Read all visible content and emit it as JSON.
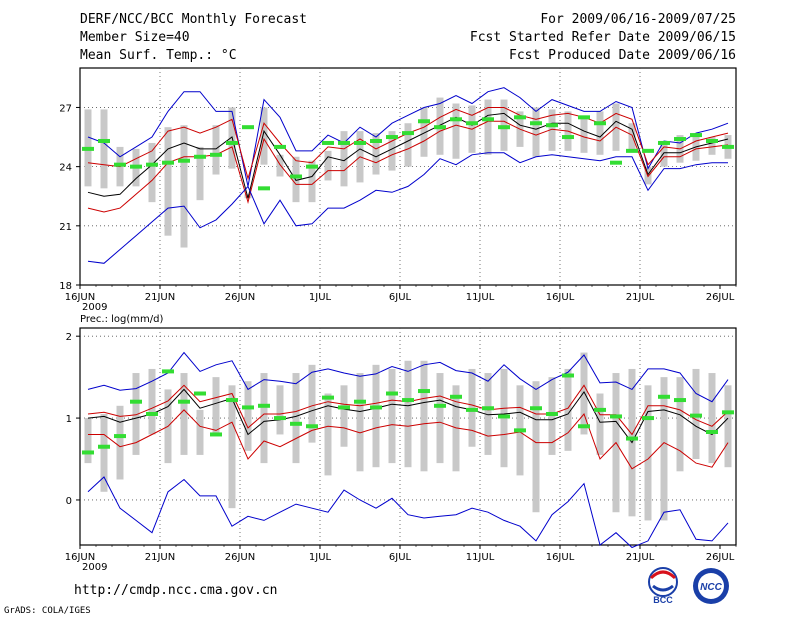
{
  "header": {
    "title": "DERF/NCC/BCC Monthly Forecast",
    "member_size": "Member Size=40",
    "top_var": "Mean Surf. Temp.: °C",
    "period": "For 2009/06/16-2009/07/25",
    "start_ref": "Fcst Started Refer Date 2009/06/15",
    "produced": "Fcst Produced Date 2009/06/16"
  },
  "footer": {
    "url": "http://cmdp.ncc.cma.gov.cn",
    "grads": "GrADS: COLA/IGES",
    "logo_bcc": "BCC",
    "logo_ncc": "NCC"
  },
  "colors": {
    "box": "#c8c8c8",
    "mean": "#000000",
    "band": "#cc0000",
    "extreme": "#0000cc",
    "obs": "#33dd33",
    "grid": "#555555"
  },
  "chart_data": [
    {
      "type": "box",
      "title": "Mean Surf. Temp.: °C",
      "xlabel": "",
      "ylabel": "",
      "x_tick_labels": [
        "16JUN",
        "21JUN",
        "26JUN",
        "1JUL",
        "6JUL",
        "11JUL",
        "16JUL",
        "21JUL",
        "26JUL"
      ],
      "x_year_label": "2009",
      "y_ticks": [
        18,
        21,
        24,
        27
      ],
      "ylim": [
        18,
        29
      ],
      "days": 41,
      "series": [
        {
          "name": "max",
          "values": [
            25.5,
            25.2,
            24.5,
            25.0,
            25.5,
            26.8,
            27.8,
            27.8,
            26.8,
            26.8,
            23.0,
            27.4,
            26.5,
            24.8,
            24.8,
            25.6,
            25.2,
            26.0,
            25.5,
            26.2,
            26.6,
            27.0,
            27.2,
            27.6,
            27.2,
            27.8,
            28.0,
            27.5,
            26.8,
            27.4,
            27.1,
            26.8,
            26.8,
            27.3,
            27.0,
            23.9,
            25.3,
            25.2,
            25.7,
            25.9,
            26.2
          ]
        },
        {
          "name": "upper",
          "values": [
            24.2,
            24.1,
            24.0,
            24.4,
            24.8,
            25.8,
            26.0,
            25.7,
            26.0,
            26.4,
            23.4,
            26.2,
            25.2,
            24.3,
            24.2,
            25.0,
            24.9,
            25.4,
            24.9,
            25.3,
            25.7,
            26.0,
            26.5,
            26.9,
            26.6,
            27.0,
            27.0,
            26.6,
            26.4,
            26.6,
            26.7,
            26.5,
            26.2,
            26.7,
            26.4,
            24.1,
            25.0,
            24.9,
            25.3,
            25.5,
            25.7
          ]
        },
        {
          "name": "mean",
          "values": [
            22.7,
            22.5,
            22.6,
            23.4,
            24.1,
            24.9,
            25.2,
            24.9,
            24.9,
            25.5,
            22.4,
            25.8,
            24.6,
            23.3,
            23.5,
            24.5,
            24.3,
            24.9,
            24.5,
            24.9,
            25.3,
            25.7,
            26.1,
            26.5,
            26.1,
            26.6,
            26.7,
            26.1,
            25.9,
            26.2,
            26.2,
            25.8,
            25.5,
            26.3,
            25.9,
            23.6,
            24.7,
            24.7,
            25.0,
            25.2,
            25.4
          ]
        },
        {
          "name": "lower",
          "values": [
            21.9,
            21.7,
            21.9,
            22.6,
            23.3,
            24.2,
            24.5,
            24.5,
            24.6,
            25.0,
            22.2,
            25.4,
            24.1,
            23.1,
            23.1,
            23.8,
            23.8,
            24.5,
            24.2,
            24.6,
            24.9,
            25.3,
            25.8,
            26.1,
            25.9,
            26.3,
            26.3,
            25.9,
            25.6,
            25.9,
            25.8,
            25.5,
            25.3,
            26.0,
            25.6,
            23.5,
            24.5,
            24.5,
            24.9,
            25.0,
            25.1
          ]
        },
        {
          "name": "min",
          "values": [
            19.2,
            19.1,
            19.8,
            20.5,
            21.2,
            21.9,
            22.0,
            20.9,
            21.3,
            22.1,
            23.0,
            21.1,
            22.3,
            21.0,
            21.1,
            21.9,
            21.9,
            22.3,
            22.8,
            22.7,
            23.0,
            23.6,
            24.4,
            24.1,
            24.6,
            24.7,
            24.7,
            24.2,
            24.5,
            24.6,
            24.5,
            24.4,
            24.3,
            24.5,
            24.5,
            22.8,
            23.9,
            23.9,
            24.1,
            24.2,
            24.2
          ]
        }
      ],
      "box_low": [
        23.0,
        22.9,
        23.0,
        23.0,
        22.2,
        20.5,
        19.9,
        22.3,
        23.6,
        23.9,
        22.4,
        24.1,
        23.5,
        22.2,
        22.2,
        23.3,
        23.0,
        23.2,
        23.6,
        23.8,
        24.0,
        24.5,
        24.6,
        24.4,
        24.7,
        24.6,
        24.8,
        25.0,
        24.5,
        24.8,
        24.8,
        24.7,
        24.6,
        24.8,
        24.8,
        23.1,
        24.0,
        24.2,
        24.3,
        24.6,
        24.4
      ],
      "box_high": [
        26.9,
        26.9,
        25.0,
        24.9,
        25.2,
        26.0,
        26.1,
        25.0,
        26.1,
        27.0,
        22.6,
        27.0,
        24.6,
        24.5,
        24.3,
        24.8,
        25.8,
        25.8,
        25.7,
        25.8,
        26.2,
        27.0,
        27.5,
        27.2,
        27.1,
        27.4,
        27.4,
        26.8,
        27.0,
        26.9,
        26.8,
        26.5,
        26.8,
        27.2,
        26.2,
        24.0,
        25.2,
        25.6,
        25.7,
        25.5,
        25.6
      ],
      "observed": [
        24.9,
        25.3,
        24.1,
        24.0,
        24.1,
        24.2,
        24.3,
        24.5,
        24.6,
        25.2,
        26.0,
        22.9,
        25.0,
        23.5,
        24.0,
        25.2,
        25.2,
        25.2,
        25.3,
        25.5,
        25.7,
        26.3,
        26.0,
        26.4,
        26.2,
        26.4,
        26.0,
        26.5,
        26.2,
        26.1,
        25.5,
        26.5,
        26.2,
        24.2,
        24.8,
        24.8,
        25.2,
        25.4,
        25.6,
        25.3,
        25.0
      ]
    },
    {
      "type": "box",
      "title": "Prec.: log(mm/d)",
      "xlabel": "",
      "ylabel": "",
      "x_tick_labels": [
        "16JUN",
        "21JUN",
        "26JUN",
        "1JUL",
        "6JUL",
        "11JUL",
        "16JUL",
        "21JUL",
        "26JUL"
      ],
      "x_year_label": "2009",
      "y_ticks": [
        0,
        1,
        2
      ],
      "ylim": [
        -0.55,
        2.1
      ],
      "days": 41,
      "series": [
        {
          "name": "max",
          "values": [
            1.35,
            1.4,
            1.34,
            1.36,
            1.45,
            1.55,
            1.8,
            1.57,
            1.65,
            1.7,
            1.35,
            1.47,
            1.45,
            1.42,
            1.56,
            1.6,
            1.55,
            1.51,
            1.54,
            1.63,
            1.57,
            1.65,
            1.68,
            1.58,
            1.55,
            1.45,
            1.65,
            1.48,
            1.35,
            1.47,
            1.56,
            1.77,
            1.43,
            1.44,
            1.35,
            1.6,
            1.6,
            1.55,
            1.3,
            1.2,
            1.47
          ]
        },
        {
          "name": "upper",
          "values": [
            1.05,
            1.07,
            1.02,
            1.04,
            1.12,
            1.21,
            1.4,
            1.2,
            1.25,
            1.3,
            0.88,
            1.05,
            1.05,
            1.08,
            1.15,
            1.2,
            1.17,
            1.15,
            1.18,
            1.22,
            1.2,
            1.24,
            1.27,
            1.2,
            1.16,
            1.1,
            1.12,
            1.13,
            1.05,
            1.05,
            1.12,
            1.4,
            1.04,
            1.04,
            0.8,
            1.15,
            1.15,
            1.1,
            0.98,
            0.9,
            1.08
          ]
        },
        {
          "name": "mean",
          "values": [
            1.0,
            1.02,
            0.95,
            1.0,
            1.05,
            1.14,
            1.35,
            1.12,
            1.18,
            1.24,
            0.8,
            0.96,
            0.98,
            1.02,
            1.09,
            1.15,
            1.11,
            1.08,
            1.12,
            1.17,
            1.15,
            1.19,
            1.22,
            1.14,
            1.1,
            1.04,
            1.05,
            1.07,
            0.98,
            0.98,
            1.05,
            1.32,
            0.95,
            0.96,
            0.7,
            1.08,
            1.1,
            1.04,
            0.9,
            0.8,
            1.0
          ]
        },
        {
          "name": "lower",
          "values": [
            0.8,
            0.8,
            0.65,
            0.7,
            0.8,
            0.9,
            1.1,
            0.9,
            0.85,
            0.95,
            0.5,
            0.72,
            0.65,
            0.75,
            0.85,
            0.9,
            0.88,
            0.82,
            0.88,
            0.92,
            0.9,
            0.93,
            0.95,
            0.88,
            0.85,
            0.78,
            0.8,
            0.83,
            0.7,
            0.7,
            0.82,
            1.05,
            0.5,
            0.7,
            0.38,
            0.5,
            0.7,
            0.6,
            0.45,
            0.4,
            0.7
          ]
        },
        {
          "name": "min",
          "values": [
            0.1,
            0.28,
            -0.1,
            -0.25,
            -0.4,
            0.1,
            0.25,
            0.05,
            0.05,
            -0.32,
            -0.2,
            -0.25,
            -0.15,
            -0.05,
            -0.1,
            -0.15,
            0.12,
            0.0,
            -0.1,
            0.02,
            -0.18,
            -0.22,
            -0.2,
            -0.18,
            -0.1,
            -0.15,
            -0.25,
            -0.32,
            -0.5,
            -0.18,
            -0.02,
            0.2,
            -0.55,
            -0.4,
            -0.58,
            -0.5,
            -0.15,
            -0.12,
            -0.48,
            -0.5,
            -0.28
          ]
        },
        {
          "name": "observed",
          "values": [
            0.58,
            0.65,
            0.78,
            1.2,
            1.05,
            1.57,
            1.2,
            1.3,
            0.8,
            1.22,
            1.13,
            1.15,
            1.0,
            0.93,
            0.9,
            1.25,
            1.13,
            1.2,
            1.13,
            1.3,
            1.22,
            1.33,
            1.15,
            1.26,
            1.1,
            1.12,
            1.02,
            0.85,
            1.12,
            1.05,
            1.52,
            0.9,
            1.1,
            1.02,
            0.75,
            1.0,
            1.26,
            1.22,
            1.03,
            0.83,
            1.07
          ]
        }
      ],
      "box_low": [
        0.45,
        0.1,
        0.25,
        0.55,
        0.8,
        0.45,
        0.55,
        0.55,
        0.8,
        -0.1,
        0.6,
        0.45,
        0.8,
        0.45,
        0.7,
        0.3,
        0.65,
        0.35,
        0.4,
        0.45,
        0.4,
        0.35,
        0.45,
        0.35,
        0.65,
        0.55,
        0.4,
        0.3,
        -0.15,
        0.55,
        0.6,
        0.8,
        0.55,
        -0.15,
        -0.2,
        -0.25,
        -0.25,
        0.35,
        0.5,
        0.45,
        0.4
      ],
      "box_high": [
        1.0,
        1.05,
        1.15,
        1.55,
        1.6,
        1.35,
        1.55,
        1.1,
        1.5,
        1.4,
        1.45,
        1.55,
        1.4,
        1.55,
        1.65,
        1.3,
        1.4,
        1.55,
        1.65,
        1.6,
        1.7,
        1.7,
        1.55,
        1.4,
        1.6,
        1.55,
        1.6,
        1.4,
        1.45,
        1.5,
        1.6,
        1.8,
        1.3,
        1.55,
        1.6,
        1.4,
        1.5,
        1.5,
        1.6,
        1.55,
        1.4
      ]
    }
  ]
}
